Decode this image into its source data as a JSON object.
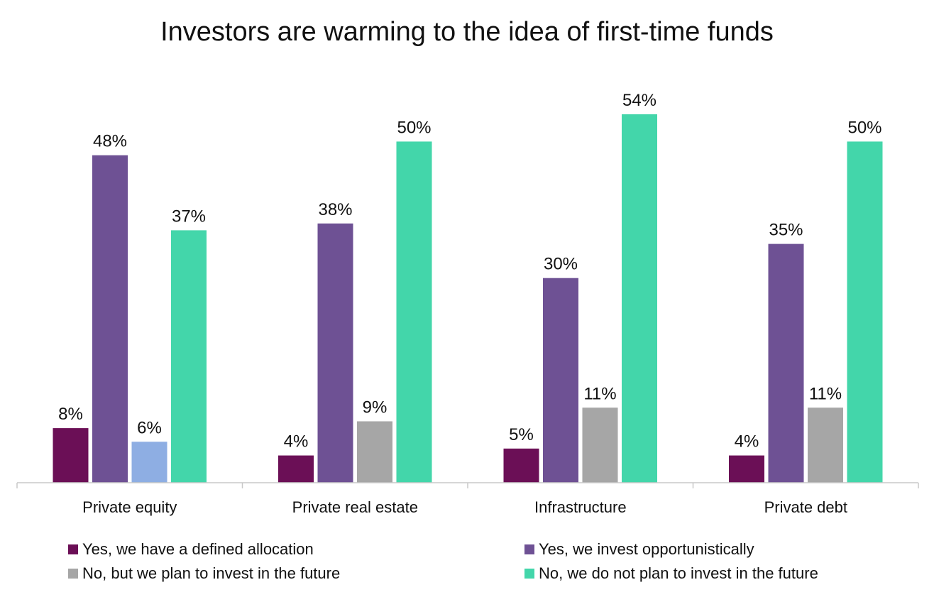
{
  "chart_data": {
    "type": "bar",
    "title": "Investors are warming to the idea of first-time funds",
    "xlabel": "",
    "ylabel": "",
    "ylim": [
      0,
      60
    ],
    "grid": false,
    "legend_position": "bottom",
    "categories": [
      "Private equity",
      "Private real estate",
      "Infrastructure",
      "Private debt"
    ],
    "series": [
      {
        "name": "Yes, we have a defined allocation",
        "color": "#6B0F56",
        "values": [
          8,
          4,
          5,
          4
        ],
        "labels": [
          "8%",
          "4%",
          "5%",
          "4%"
        ]
      },
      {
        "name": "Yes, we invest opportunistically",
        "color": "#6E5194",
        "values": [
          48,
          38,
          30,
          35
        ],
        "labels": [
          "48%",
          "38%",
          "30%",
          "35%"
        ]
      },
      {
        "name": "No, but we plan to invest in the future",
        "color": "#A6A6A6",
        "values": [
          6,
          9,
          11,
          11
        ],
        "labels": [
          "6%",
          "9%",
          "11%",
          "11%"
        ],
        "point_colors": [
          "#8EAEE3",
          "#A6A6A6",
          "#A6A6A6",
          "#A6A6A6"
        ]
      },
      {
        "name": "No, we do not plan to invest in the future",
        "color": "#43D6AA",
        "values": [
          37,
          50,
          54,
          50
        ],
        "labels": [
          "37%",
          "50%",
          "54%",
          "50%"
        ]
      }
    ]
  },
  "colors": {
    "axis": "#C8C8C8",
    "text": "#111111"
  }
}
